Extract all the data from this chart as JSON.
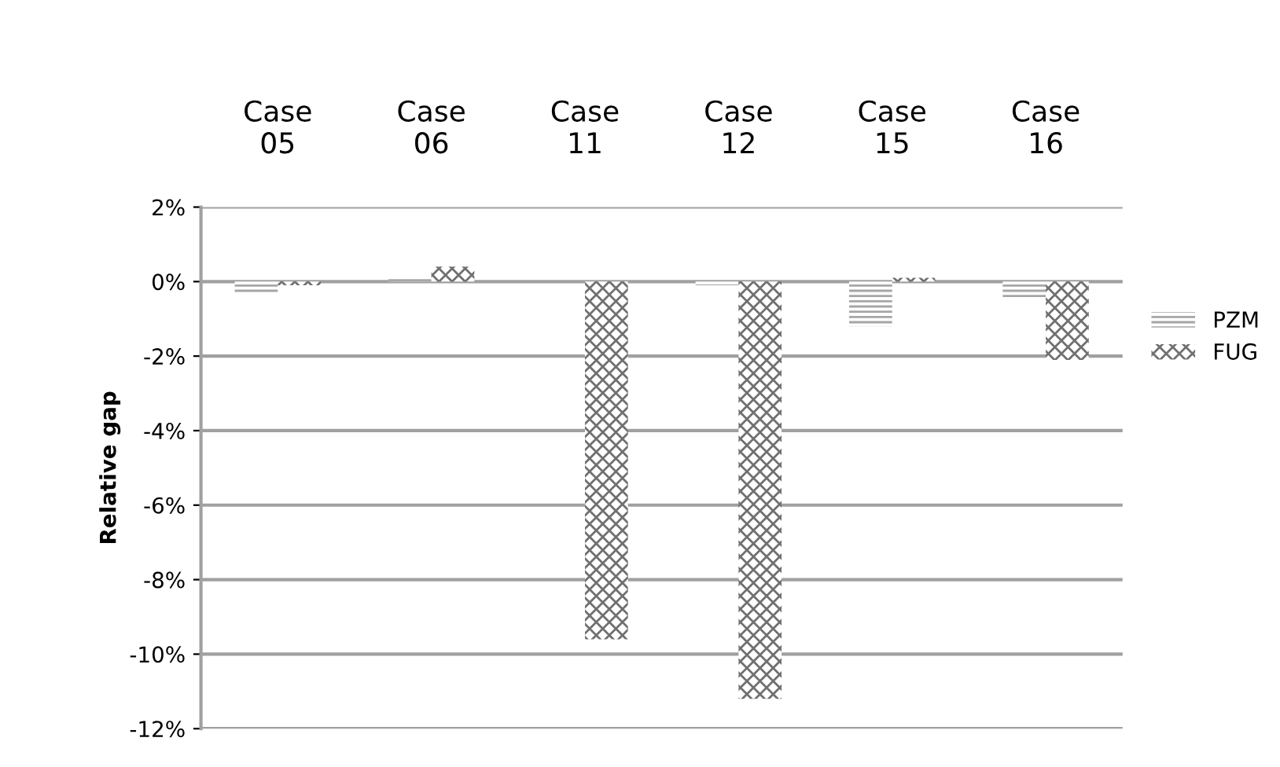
{
  "chart_data": {
    "type": "bar",
    "ylabel": "Relative gap",
    "categories": [
      "Case\n05",
      "Case\n06",
      "Case\n11",
      "Case\n12",
      "Case\n15",
      "Case\n16"
    ],
    "series": [
      {
        "name": "PZM",
        "color": "#a6a6a6",
        "values": [
          -0.3,
          0.1,
          0,
          -0.1,
          -1.2,
          -0.45
        ]
      },
      {
        "name": "FUG",
        "color": "#707070",
        "values": [
          -0.1,
          0.4,
          -9.6,
          -11.2,
          0.1,
          -2.1
        ]
      }
    ],
    "ylim": [
      -12,
      2
    ],
    "yticks": [
      {
        "value": 2,
        "label": "2%"
      },
      {
        "value": 0,
        "label": "0%"
      },
      {
        "value": -2,
        "label": "-2%"
      },
      {
        "value": -4,
        "label": "-4%"
      },
      {
        "value": -6,
        "label": "-6%"
      },
      {
        "value": -8,
        "label": "-8%"
      },
      {
        "value": -10,
        "label": "-10%"
      },
      {
        "value": -12,
        "label": "-12%"
      }
    ],
    "grid": "y",
    "legend": "right"
  }
}
